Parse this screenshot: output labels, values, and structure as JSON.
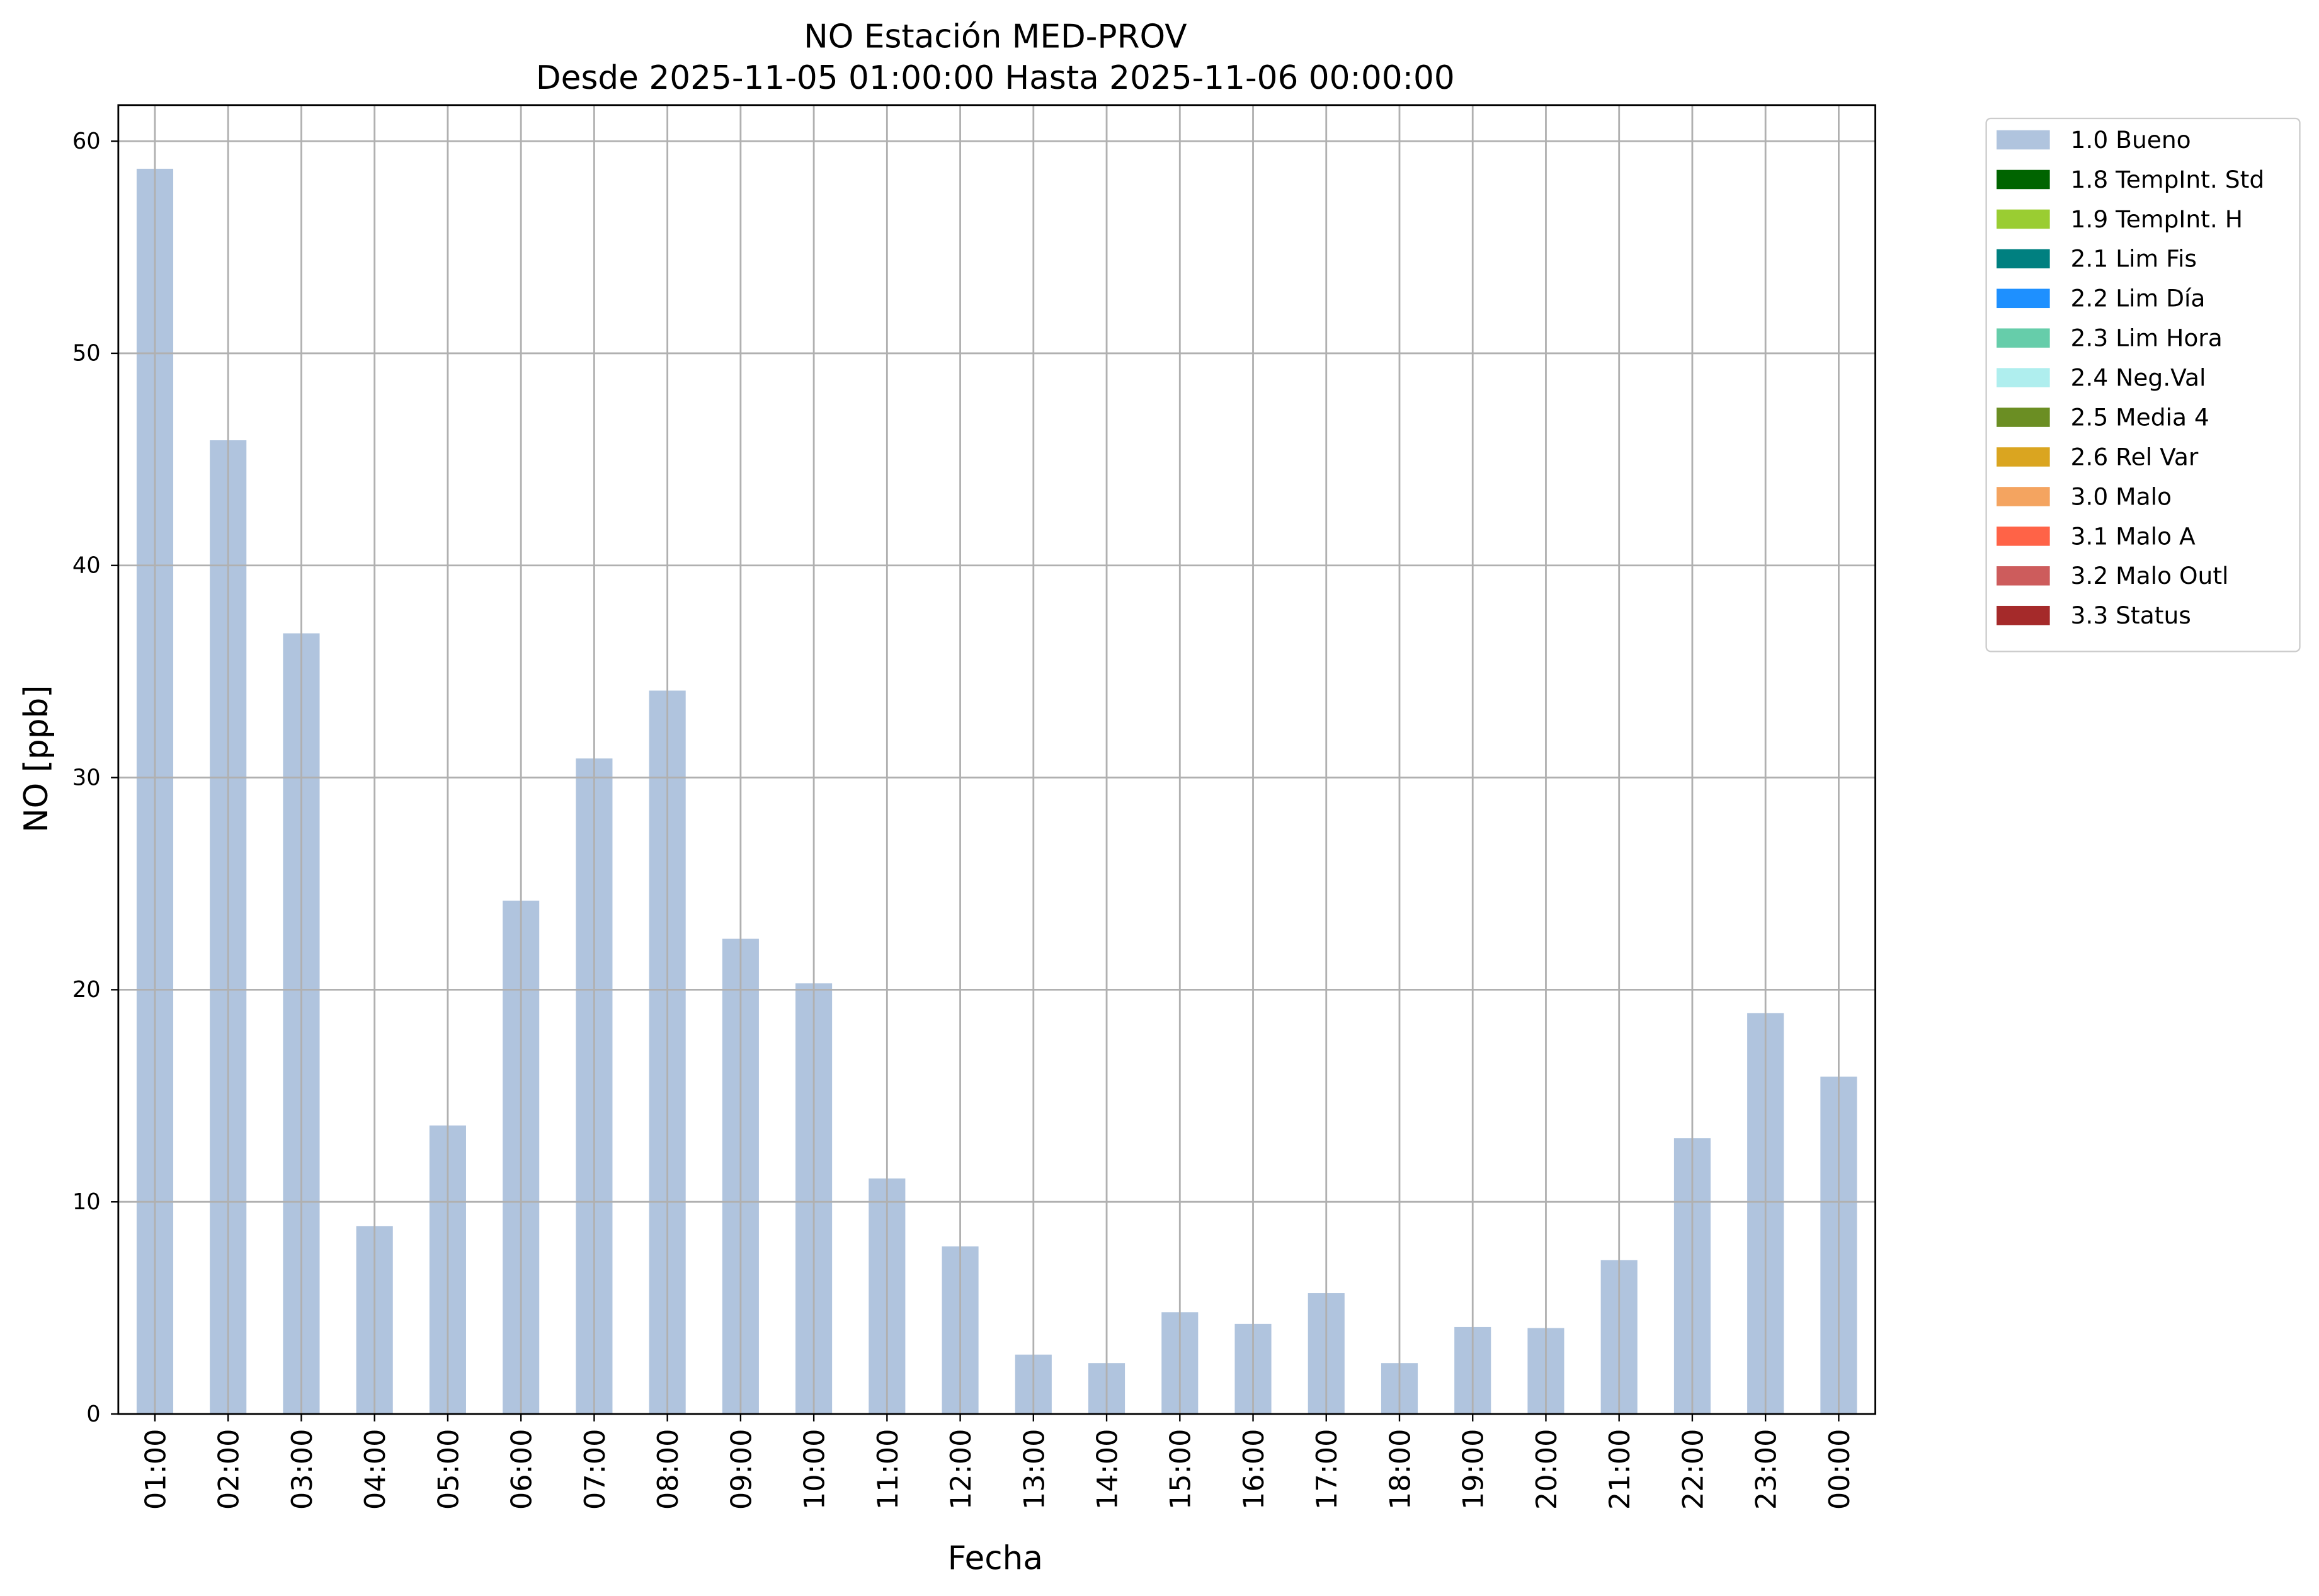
{
  "chart_data": {
    "type": "bar",
    "title": "NO Estación MED-PROV",
    "subtitle": "Desde 2025-11-05 01:00:00 Hasta 2025-11-06 00:00:00",
    "x_label": "Fecha",
    "y_label": "NO [ppb]",
    "categories": [
      "01:00",
      "02:00",
      "03:00",
      "04:00",
      "05:00",
      "06:00",
      "07:00",
      "08:00",
      "09:00",
      "10:00",
      "11:00",
      "12:00",
      "13:00",
      "14:00",
      "15:00",
      "16:00",
      "17:00",
      "18:00",
      "19:00",
      "20:00",
      "21:00",
      "22:00",
      "23:00",
      "00:00"
    ],
    "series": [
      {
        "name": "1.0 Bueno",
        "color": "#b0c4de",
        "values": [
          58.7,
          45.9,
          36.8,
          8.85,
          13.6,
          24.2,
          30.9,
          34.1,
          22.4,
          20.3,
          11.1,
          7.9,
          2.8,
          2.4,
          4.8,
          4.25,
          5.7,
          2.4,
          4.1,
          4.05,
          7.25,
          13.0,
          18.9,
          15.9
        ]
      }
    ],
    "legend_entries": [
      {
        "name": "1.8 TempInt. Std",
        "color": "#006400"
      },
      {
        "name": "1.9 TempInt. H",
        "color": "#9acd32"
      },
      {
        "name": "2.1 Lim Fis",
        "color": "#008080"
      },
      {
        "name": "2.2 Lim Día",
        "color": "#1e90ff"
      },
      {
        "name": "2.3 Lim Hora",
        "color": "#66cdaa"
      },
      {
        "name": "2.4 Neg.Val",
        "color": "#afeeee"
      },
      {
        "name": "2.5 Media 4",
        "color": "#6b8e23"
      },
      {
        "name": "2.6 Rel Var",
        "color": "#daa520"
      },
      {
        "name": "3.0 Malo",
        "color": "#f4a460"
      },
      {
        "name": "3.1 Malo A",
        "color": "#ff6347"
      },
      {
        "name": "3.2 Malo Outl",
        "color": "#cd5c5c"
      },
      {
        "name": "3.3 Status",
        "color": "#a52a2a"
      }
    ],
    "ylim": [
      0,
      61.7
    ],
    "yticks": [
      0,
      10,
      20,
      30,
      40,
      50,
      60
    ],
    "grid": true,
    "legend_position": "outside-upper-right"
  }
}
